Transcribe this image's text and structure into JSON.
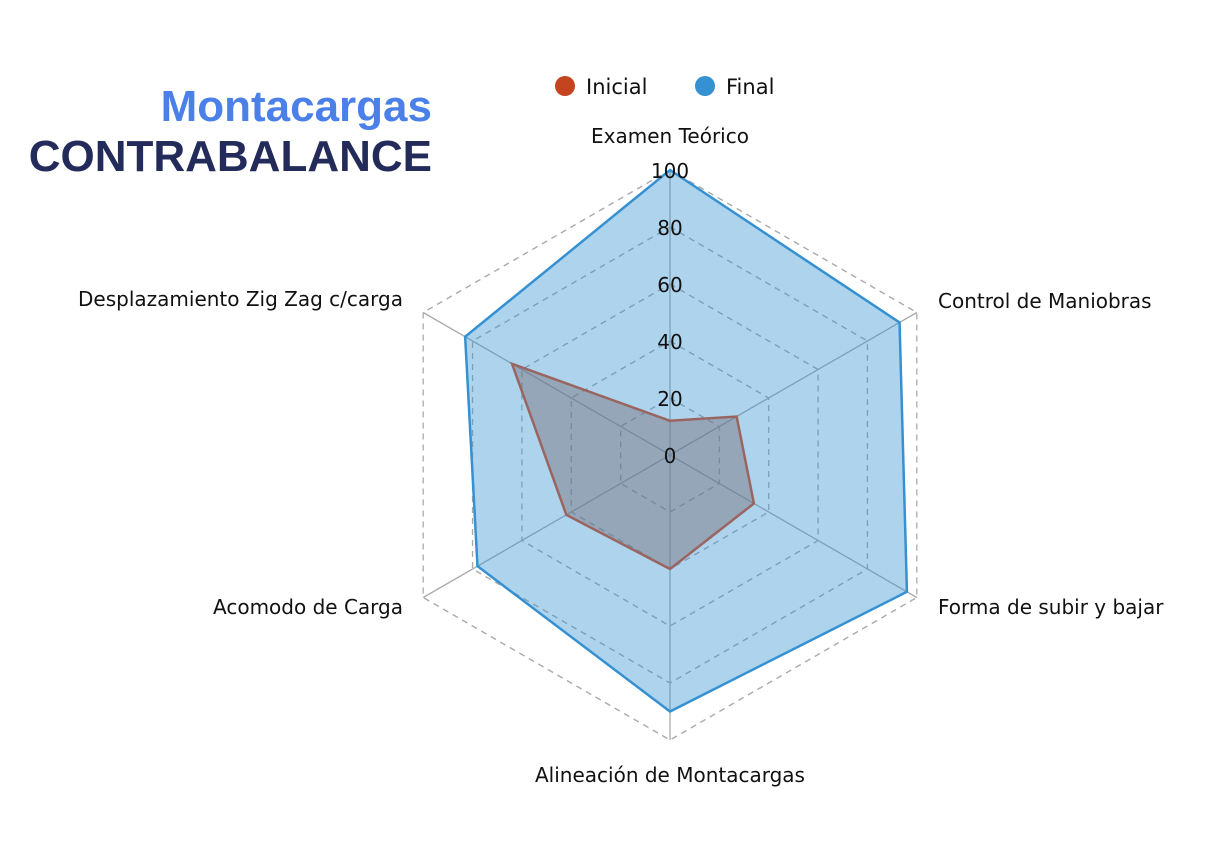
{
  "title": {
    "line1": "Montacargas",
    "line2": "CONTRABALANCE"
  },
  "chart_data": {
    "type": "radar",
    "axes": [
      "Examen Teórico",
      "Control de Maniobras",
      "Forma de subir y bajar",
      "Alineación de Montacargas",
      "Acomodo de Carga",
      "Desplazamiento Zig Zag c/carga"
    ],
    "range": [
      0,
      100
    ],
    "ticks": [
      "0",
      "20",
      "40",
      "60",
      "80",
      "100"
    ],
    "grid": true,
    "legend": "top",
    "series": [
      {
        "name": "Inicial",
        "color": "#c4441f",
        "values": [
          12,
          27,
          34,
          40,
          42,
          64
        ]
      },
      {
        "name": "Final",
        "color": "#3591d1",
        "values": [
          100,
          93,
          96,
          90,
          78,
          83
        ]
      }
    ]
  }
}
